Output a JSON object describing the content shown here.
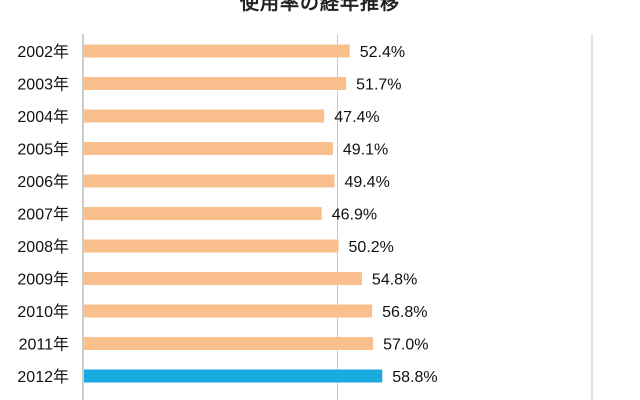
{
  "chart_data": {
    "type": "bar",
    "orientation": "horizontal",
    "title": "使用率の経年推移",
    "categories": [
      "2002年",
      "2003年",
      "2004年",
      "2005年",
      "2006年",
      "2007年",
      "2008年",
      "2009年",
      "2010年",
      "2011年",
      "2012年"
    ],
    "values": [
      52.4,
      51.7,
      47.4,
      49.1,
      49.4,
      46.9,
      50.2,
      54.8,
      56.8,
      57.0,
      58.8
    ],
    "value_labels": [
      "52.4%",
      "51.7%",
      "47.4%",
      "49.1%",
      "49.4%",
      "46.9%",
      "50.2%",
      "54.8%",
      "56.8%",
      "57.0%",
      "58.8%"
    ],
    "unit": "%",
    "xlim": [
      0,
      100
    ],
    "grid": "vertical lines at 50% and 100%",
    "colors": {
      "default_bar": "#F9C08E",
      "highlight_bar": "#1AAAE0",
      "axis": "#9a9a9a",
      "grid": "#c8c8c8",
      "text": "#111111"
    },
    "highlight_category": "2012年"
  }
}
